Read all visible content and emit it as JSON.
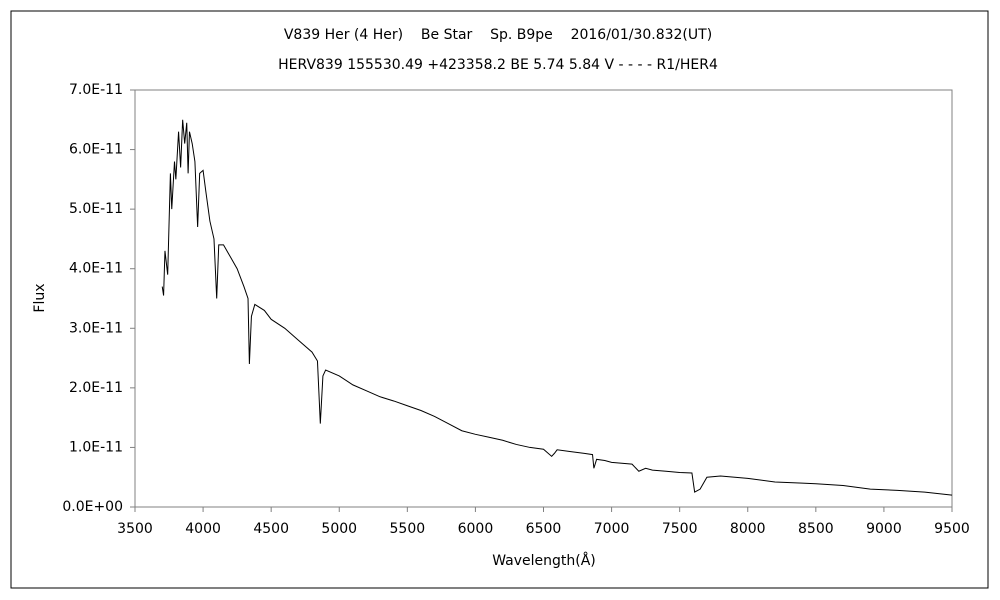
{
  "chart_data": {
    "type": "line",
    "title": "V839 Her (4 Her)    Be Star    Sp. B9pe    2016/01/30.832(UT)",
    "subtitle": "HERV839 155530.49 +423358.2 BE 5.74 5.84 V - - - - R1/HER4",
    "x_label": "Wavelength(Å)",
    "y_label": "Flux",
    "color": "#000000",
    "x": [
      3700,
      3710,
      3720,
      3740,
      3760,
      3770,
      3790,
      3800,
      3820,
      3835,
      3850,
      3865,
      3880,
      3890,
      3900,
      3920,
      3940,
      3960,
      3975,
      4000,
      4020,
      4050,
      4080,
      4100,
      4115,
      4150,
      4200,
      4250,
      4300,
      4330,
      4340,
      4355,
      4380,
      4450,
      4500,
      4600,
      4700,
      4800,
      4840,
      4861,
      4880,
      4900,
      5000,
      5100,
      5200,
      5300,
      5400,
      5500,
      5600,
      5700,
      5800,
      5900,
      6000,
      6100,
      6200,
      6300,
      6400,
      6500,
      6560,
      6580,
      6600,
      6700,
      6800,
      6860,
      6870,
      6890,
      6950,
      7000,
      7150,
      7200,
      7250,
      7300,
      7400,
      7500,
      7590,
      7610,
      7650,
      7700,
      7800,
      8000,
      8200,
      8400,
      8500,
      8700,
      8900,
      9100,
      9300,
      9500
    ],
    "values": [
      3.7e-11,
      3.55e-11,
      4.3e-11,
      3.9e-11,
      5.6e-11,
      5e-11,
      5.8e-11,
      5.5e-11,
      6.3e-11,
      5.7e-11,
      6.5e-11,
      6.1e-11,
      6.45e-11,
      5.6e-11,
      6.3e-11,
      6.1e-11,
      5.8e-11,
      4.7e-11,
      5.6e-11,
      5.65e-11,
      5.3e-11,
      4.8e-11,
      4.5e-11,
      3.5e-11,
      4.4e-11,
      4.4e-11,
      4.2e-11,
      4e-11,
      3.7e-11,
      3.5e-11,
      2.4e-11,
      3.2e-11,
      3.4e-11,
      3.3e-11,
      3.15e-11,
      3e-11,
      2.8e-11,
      2.6e-11,
      2.45e-11,
      1.4e-11,
      2.2e-11,
      2.3e-11,
      2.2e-11,
      2.05e-11,
      1.95e-11,
      1.85e-11,
      1.78e-11,
      1.7e-11,
      1.62e-11,
      1.52e-11,
      1.4e-11,
      1.28e-11,
      1.22e-11,
      1.17e-11,
      1.12e-11,
      1.05e-11,
      1e-11,
      9.7e-12,
      8.5e-12,
      9e-12,
      9.6e-12,
      9.3e-12,
      9e-12,
      8.8e-12,
      6.5e-12,
      8e-12,
      7.8e-12,
      7.5e-12,
      7.2e-12,
      6e-12,
      6.5e-12,
      6.2e-12,
      6e-12,
      5.8e-12,
      5.7e-12,
      2.5e-12,
      3e-12,
      5e-12,
      5.2e-12,
      4.8e-12,
      4.2e-12,
      4e-12,
      3.9e-12,
      3.6e-12,
      3e-12,
      2.8e-12,
      2.5e-12,
      2e-12
    ],
    "xlim": [
      3500,
      9500
    ],
    "xticks": [
      3500,
      4000,
      4500,
      5000,
      5500,
      6000,
      6500,
      7000,
      7500,
      8000,
      8500,
      9000,
      9500
    ],
    "ylim": [
      0,
      7e-11
    ],
    "yticks": [
      {
        "value": 0,
        "label": "0.0E+00"
      },
      {
        "value": 1e-11,
        "label": "1.0E-11"
      },
      {
        "value": 2e-11,
        "label": "2.0E-11"
      },
      {
        "value": 3e-11,
        "label": "3.0E-11"
      },
      {
        "value": 4e-11,
        "label": "4.0E-11"
      },
      {
        "value": 5e-11,
        "label": "5.0E-11"
      },
      {
        "value": 6e-11,
        "label": "6.0E-11"
      },
      {
        "value": 7e-11,
        "label": "7.0E-11"
      }
    ],
    "grid": false
  }
}
